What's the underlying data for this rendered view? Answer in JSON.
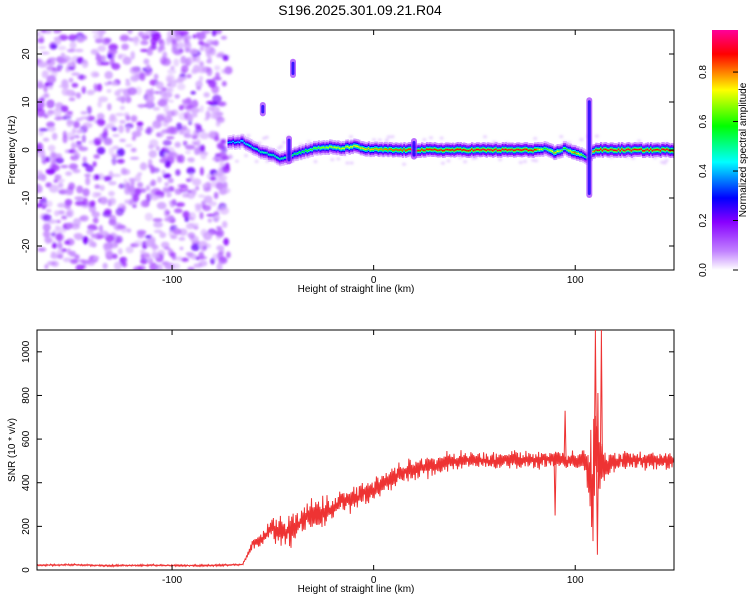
{
  "title": "S196.2025.301.09.21.R04",
  "chart_data": [
    {
      "type": "heatmap",
      "title": "S196.2025.301.09.21.R04",
      "xlabel": "Height of straight line (km)",
      "ylabel": "Frequency (Hz)",
      "xlim": [
        -167,
        149
      ],
      "ylim": [
        -25,
        25
      ],
      "xticks": [
        -100,
        0,
        100
      ],
      "xtick_labels": [
        "-100",
        "0",
        "100"
      ],
      "yticks": [
        -20,
        -10,
        0,
        10,
        20
      ],
      "ytick_labels": [
        "-20",
        "-10",
        "0",
        "10",
        "20"
      ],
      "noise_region_x": [
        -167,
        -72
      ],
      "ridge": {
        "x": [
          -72,
          -65,
          -58,
          -52,
          -46,
          -40,
          -34,
          -28,
          -22,
          -16,
          -10,
          -4,
          2,
          10,
          20,
          40,
          60,
          80,
          85,
          90,
          95,
          100,
          106,
          110,
          120,
          149
        ],
        "freq": [
          1.5,
          1.8,
          0.0,
          -0.8,
          -1.8,
          -1.0,
          -0.2,
          0.4,
          0.6,
          0.3,
          0.8,
          0.2,
          0.1,
          0.0,
          0.0,
          0.0,
          0.0,
          0.0,
          0.2,
          -0.6,
          0.3,
          -0.6,
          -1.5,
          0.0,
          0.0,
          0.0
        ],
        "amplitude": [
          0.4,
          0.45,
          0.5,
          0.5,
          0.5,
          0.55,
          0.6,
          0.65,
          0.7,
          0.72,
          0.75,
          0.78,
          0.8,
          0.85,
          0.88,
          0.9,
          0.92,
          0.9,
          0.6,
          0.8,
          0.6,
          0.85,
          0.5,
          0.9,
          0.92,
          0.9
        ]
      },
      "vertical_features": [
        {
          "x": -42,
          "freq_range": [
            -3,
            3
          ]
        },
        {
          "x": -55,
          "freq_range": [
            7,
            10
          ]
        },
        {
          "x": -40,
          "freq_range": [
            15,
            19
          ]
        },
        {
          "x": 20,
          "freq_range": [
            -2,
            2.5
          ]
        },
        {
          "x": 107,
          "freq_range": [
            -10,
            11
          ]
        }
      ],
      "colorbar": {
        "label": "Normalized spectral amplitude",
        "range": [
          0.0,
          0.97
        ],
        "ticks": [
          0.0,
          0.2,
          0.4,
          0.6,
          0.8
        ],
        "tick_labels": [
          "0.0",
          "0.2",
          "0.4",
          "0.6",
          "0.8"
        ],
        "colors": [
          "#ffffff",
          "#8800ff",
          "#0000ff",
          "#00ffff",
          "#00ff00",
          "#ffff00",
          "#ff0000",
          "#ff0099"
        ]
      }
    },
    {
      "type": "line",
      "xlabel": "Height of straight line (km)",
      "ylabel": "SNR (10 * v/v)",
      "xlim": [
        -167,
        149
      ],
      "ylim": [
        0,
        1100
      ],
      "xticks": [
        -100,
        0,
        100
      ],
      "xtick_labels": [
        "-100",
        "0",
        "100"
      ],
      "yticks": [
        0,
        200,
        400,
        600,
        800,
        1000
      ],
      "ytick_labels": [
        "0",
        "200",
        "400",
        "600",
        "800",
        "1000"
      ],
      "line_color": "#ee3333",
      "series": [
        {
          "name": "SNR",
          "x": [
            -167,
            -150,
            -130,
            -110,
            -90,
            -75,
            -65,
            -60,
            -55,
            -50,
            -45,
            -40,
            -35,
            -30,
            -25,
            -20,
            -15,
            -10,
            -5,
            0,
            5,
            10,
            15,
            20,
            25,
            30,
            35,
            40,
            50,
            60,
            70,
            80,
            90,
            95,
            100,
            105,
            108,
            110,
            112,
            115,
            120,
            130,
            140,
            149
          ],
          "y": [
            22,
            24,
            20,
            22,
            20,
            22,
            25,
            120,
            150,
            200,
            170,
            190,
            230,
            250,
            260,
            290,
            320,
            330,
            350,
            370,
            400,
            420,
            440,
            460,
            470,
            480,
            490,
            500,
            505,
            500,
            505,
            500,
            510,
            500,
            505,
            500,
            400,
            550,
            500,
            480,
            500,
            505,
            500,
            500
          ],
          "spread": [
            6,
            6,
            6,
            6,
            6,
            6,
            6,
            40,
            60,
            90,
            110,
            120,
            110,
            110,
            110,
            100,
            90,
            90,
            90,
            80,
            80,
            80,
            80,
            80,
            80,
            80,
            70,
            70,
            60,
            60,
            60,
            60,
            60,
            60,
            60,
            80,
            400,
            600,
            300,
            80,
            60,
            60,
            60,
            60
          ]
        }
      ],
      "spikes": [
        {
          "x": 90,
          "y": 250
        },
        {
          "x": 95,
          "y": 730
        },
        {
          "x": 110,
          "y": 1100
        },
        {
          "x": 111,
          "y": 70
        },
        {
          "x": 113,
          "y": 1100
        }
      ]
    }
  ]
}
